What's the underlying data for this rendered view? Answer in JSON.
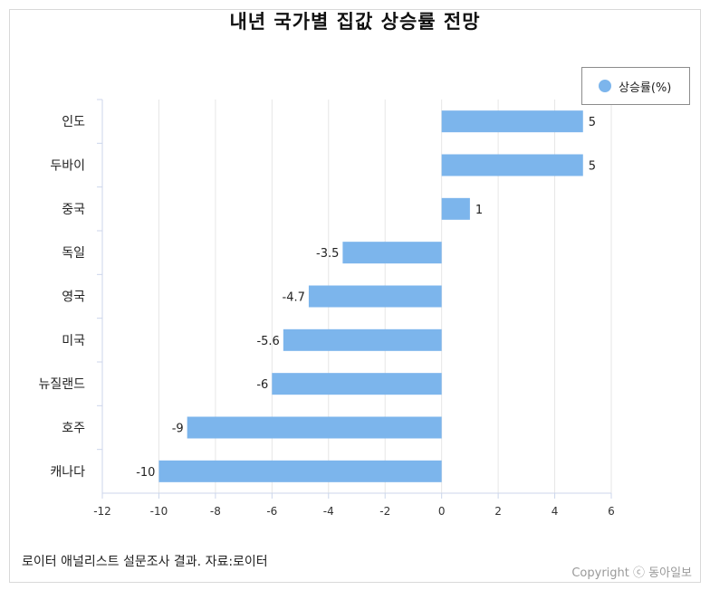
{
  "chart_data": {
    "type": "bar",
    "orientation": "horizontal",
    "title": "내년 국가별 집값 상승률 전망",
    "categories": [
      "인도",
      "두바이",
      "중국",
      "독일",
      "영국",
      "미국",
      "뉴질랜드",
      "호주",
      "캐나다"
    ],
    "series": [
      {
        "name": "상승률(%)",
        "values": [
          5,
          5,
          1,
          -3.5,
          -4.7,
          -5.6,
          -6,
          -9,
          -10
        ],
        "color": "#7cb5ec"
      }
    ],
    "value_labels": [
      "5",
      "5",
      "1",
      "-3.5",
      "-4.7",
      "-5.6",
      "-6",
      "-9",
      "-10"
    ],
    "xlim": [
      -12,
      6
    ],
    "xticks": [
      -12,
      -10,
      -8,
      -6,
      -4,
      -2,
      0,
      2,
      4,
      6
    ],
    "xtick_labels": [
      "-12",
      "-10",
      "-8",
      "-6",
      "-4",
      "-2",
      "0",
      "2",
      "4",
      "6"
    ],
    "grid": true,
    "legend_position": "top-right"
  },
  "legend": {
    "label": "상승률(%)"
  },
  "footnote": "로이터 애널리스트 설문조사 결과. 자료:로이터",
  "copyright": "Copyright ⓒ 동아일보"
}
